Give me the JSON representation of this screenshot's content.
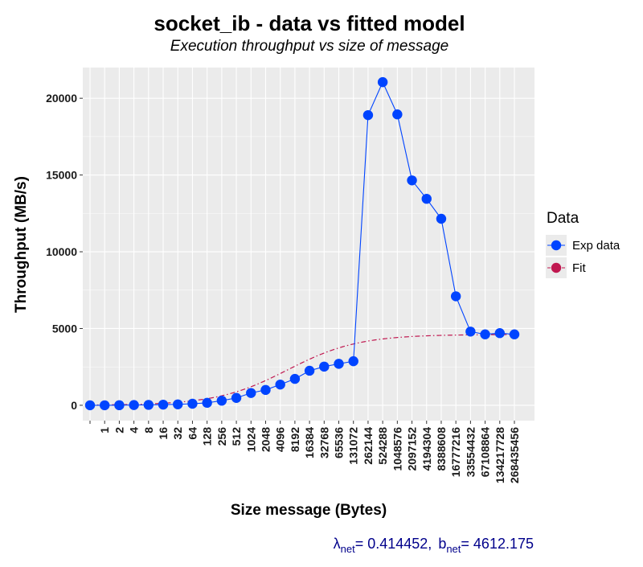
{
  "chart_data": {
    "type": "line",
    "title": "socket_ib - data vs fitted model",
    "subtitle": "Execution throughput vs size of message",
    "xlabel": "Size message (Bytes)",
    "ylabel": "Throughput (MB/s)",
    "ylim": [
      -1000,
      22000
    ],
    "y_ticks": [
      0,
      5000,
      10000,
      15000,
      20000
    ],
    "categories": [
      "",
      "1",
      "2",
      "4",
      "8",
      "16",
      "32",
      "64",
      "128",
      "256",
      "512",
      "1024",
      "2048",
      "4096",
      "8192",
      "16384",
      "32768",
      "65536",
      "131072",
      "262144",
      "524288",
      "1048576",
      "2097152",
      "4194304",
      "8388608",
      "16777216",
      "33554432",
      "67108864",
      "134217728",
      "268435456"
    ],
    "grid": true,
    "legend": {
      "title": "Data",
      "position": "right",
      "entries": [
        {
          "label": "Exp data",
          "color": "#0044ff"
        },
        {
          "label": "Fit",
          "color": "#c0174f"
        }
      ]
    },
    "series": [
      {
        "name": "Exp data",
        "color": "#0044ff",
        "style": "line-points",
        "values": [
          0,
          0,
          5,
          15,
          25,
          40,
          60,
          100,
          160,
          300,
          480,
          800,
          1000,
          1350,
          1720,
          2250,
          2520,
          2700,
          2870,
          18900,
          21050,
          18950,
          14650,
          13450,
          12150,
          7100,
          4800,
          4620,
          4700,
          4620
        ]
      },
      {
        "name": "Fit",
        "color": "#c0174f",
        "style": "dash-dot",
        "lambda": 0.414452,
        "b": 4612.175
      }
    ],
    "annotation": {
      "lambda_symbol": "λ",
      "lambda_sub": "net",
      "lambda_value": "= 0.414452,",
      "b_symbol": "b",
      "b_sub": "net",
      "b_value": "= 4612.175",
      "color": "#00008b"
    },
    "colors": {
      "panel": "#ebebeb",
      "grid_major": "#ffffff"
    }
  }
}
